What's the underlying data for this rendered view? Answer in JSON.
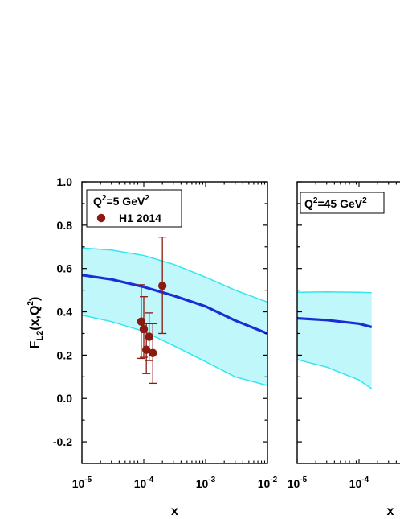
{
  "chart_data": [
    {
      "type": "line",
      "panel": "left",
      "annotation": {
        "text": "Q",
        "sup1": "2",
        "mid": "=5 GeV",
        "sup2": "2"
      },
      "xlabel": "x",
      "ylabel": {
        "main": "F",
        "sub": "L2",
        "rest": "(x,Q",
        "sup": "2",
        "end": ")"
      },
      "xscale": "log",
      "xlim": [
        1e-05,
        0.01
      ],
      "ylim": [
        -0.3,
        1.0
      ],
      "x_ticks": [
        {
          "base": "10",
          "exp": "-5",
          "v": 1e-05
        },
        {
          "base": "10",
          "exp": "-4",
          "v": 0.0001
        },
        {
          "base": "10",
          "exp": "-3",
          "v": 0.001
        },
        {
          "base": "10",
          "exp": "-2",
          "v": 0.01
        }
      ],
      "y_ticks": [
        "-0.2",
        "0.0",
        "0.2",
        "0.4",
        "0.6",
        "0.8",
        "1.0"
      ],
      "band": {
        "color": "#bff7fa",
        "edge_color": "#33e6ee",
        "x": [
          1e-05,
          3e-05,
          0.0001,
          0.0003,
          0.001,
          0.003,
          0.01
        ],
        "upper": [
          0.695,
          0.685,
          0.66,
          0.62,
          0.56,
          0.5,
          0.445
        ],
        "lower": [
          0.385,
          0.355,
          0.31,
          0.245,
          0.17,
          0.1,
          0.06
        ]
      },
      "central": {
        "color": "#1a2ed6",
        "x": [
          1e-05,
          3e-05,
          0.0001,
          0.0003,
          0.001,
          0.003,
          0.01
        ],
        "y": [
          0.57,
          0.55,
          0.515,
          0.475,
          0.425,
          0.36,
          0.3
        ]
      },
      "points": {
        "name": "H1 2014",
        "color": "#8b1a10",
        "data": [
          {
            "x": 9.1e-05,
            "y": 0.355,
            "lo": 0.185,
            "hi": 0.525
          },
          {
            "x": 0.0001,
            "y": 0.32,
            "lo": 0.19,
            "hi": 0.47
          },
          {
            "x": 0.00011,
            "y": 0.225,
            "lo": 0.115,
            "hi": 0.345
          },
          {
            "x": 0.000122,
            "y": 0.285,
            "lo": 0.175,
            "hi": 0.395
          },
          {
            "x": 0.00014,
            "y": 0.21,
            "lo": 0.07,
            "hi": 0.345
          },
          {
            "x": 0.0002,
            "y": 0.52,
            "lo": 0.3,
            "hi": 0.745
          }
        ]
      }
    },
    {
      "type": "line",
      "panel": "right",
      "annotation": {
        "text": "Q",
        "sup1": "2",
        "mid": "=45 GeV",
        "sup2": "2"
      },
      "xlabel": "x",
      "xscale": "log",
      "xlim": [
        1e-05,
        0.01
      ],
      "ylim": [
        -0.3,
        1.0
      ],
      "x_ticks": [
        {
          "base": "10",
          "exp": "-5",
          "v": 1e-05
        },
        {
          "base": "10",
          "exp": "-4",
          "v": 0.0001
        }
      ],
      "band": {
        "color": "#bff7fa",
        "edge_color": "#33e6ee",
        "x": [
          1e-05,
          3e-05,
          0.0001,
          0.00016
        ],
        "upper": [
          0.49,
          0.492,
          0.49,
          0.488
        ],
        "lower": [
          0.18,
          0.145,
          0.085,
          0.045
        ]
      },
      "central": {
        "color": "#1a2ed6",
        "x": [
          1e-05,
          3e-05,
          0.0001,
          0.00016
        ],
        "y": [
          0.37,
          0.362,
          0.345,
          0.33
        ]
      }
    }
  ]
}
